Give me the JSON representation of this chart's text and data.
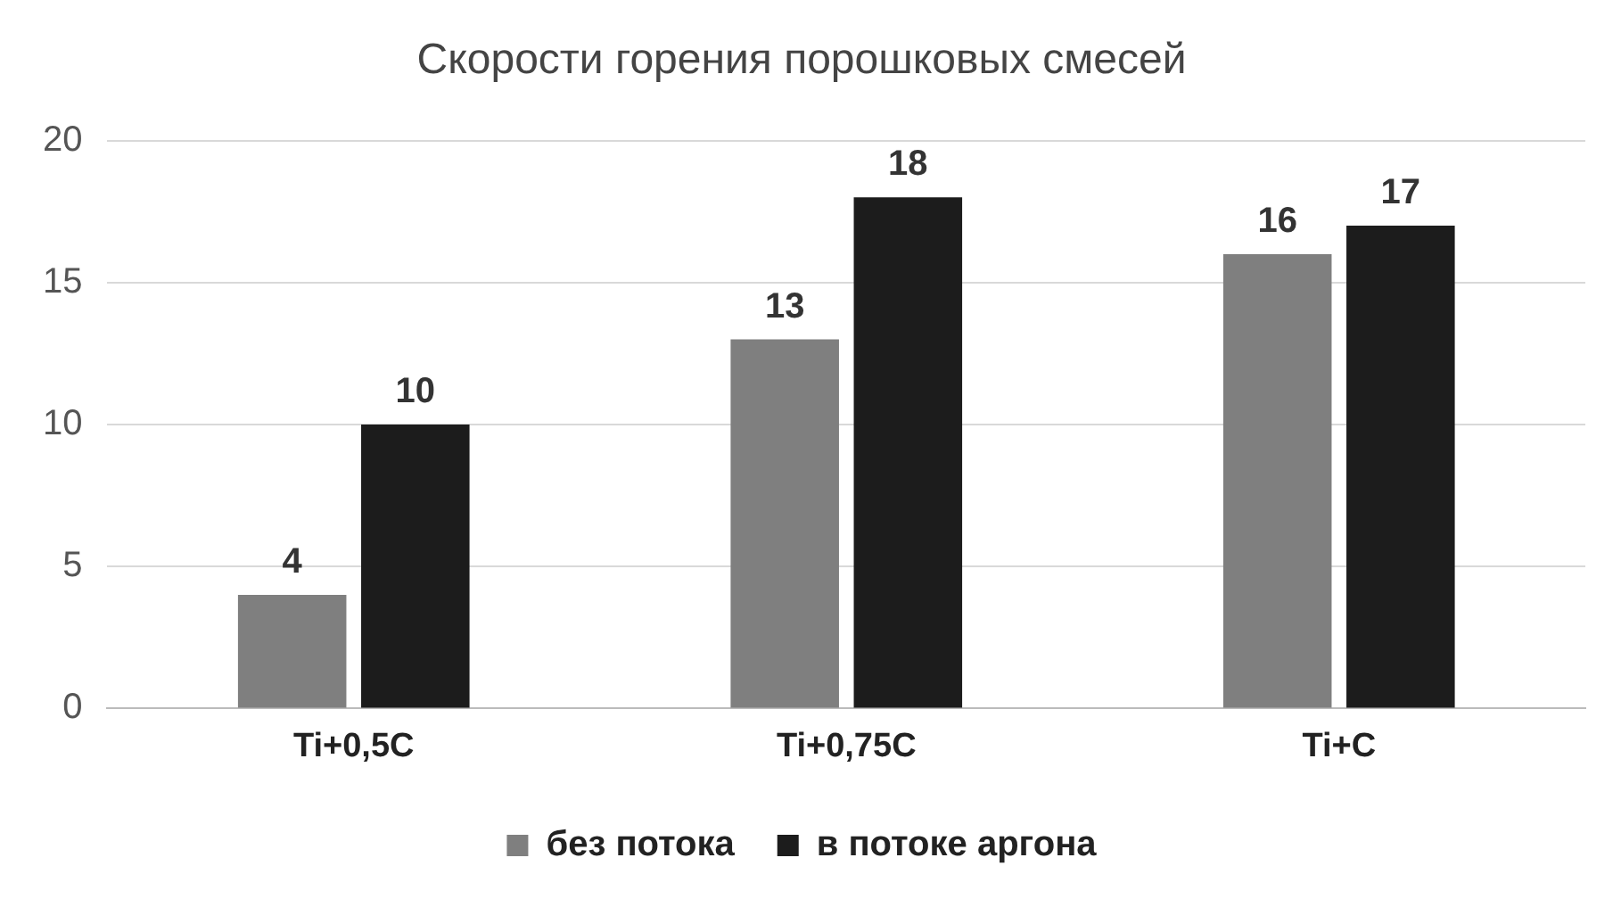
{
  "chart_data": {
    "type": "bar",
    "title": "Скорости горения порошковых смесей",
    "categories": [
      "Ti+0,5C",
      "Ti+0,75C",
      "Ti+C"
    ],
    "series": [
      {
        "name": "без потока",
        "color": "#7f7f7f",
        "values": [
          4,
          13,
          16
        ]
      },
      {
        "name": "в потоке аргона",
        "color": "#1c1c1c",
        "values": [
          10,
          18,
          17
        ]
      }
    ],
    "ylim": [
      0,
      20
    ],
    "yticks": [
      0,
      5,
      10,
      15,
      20
    ],
    "grid": "y",
    "legend": "bottom",
    "data_labels": true
  }
}
